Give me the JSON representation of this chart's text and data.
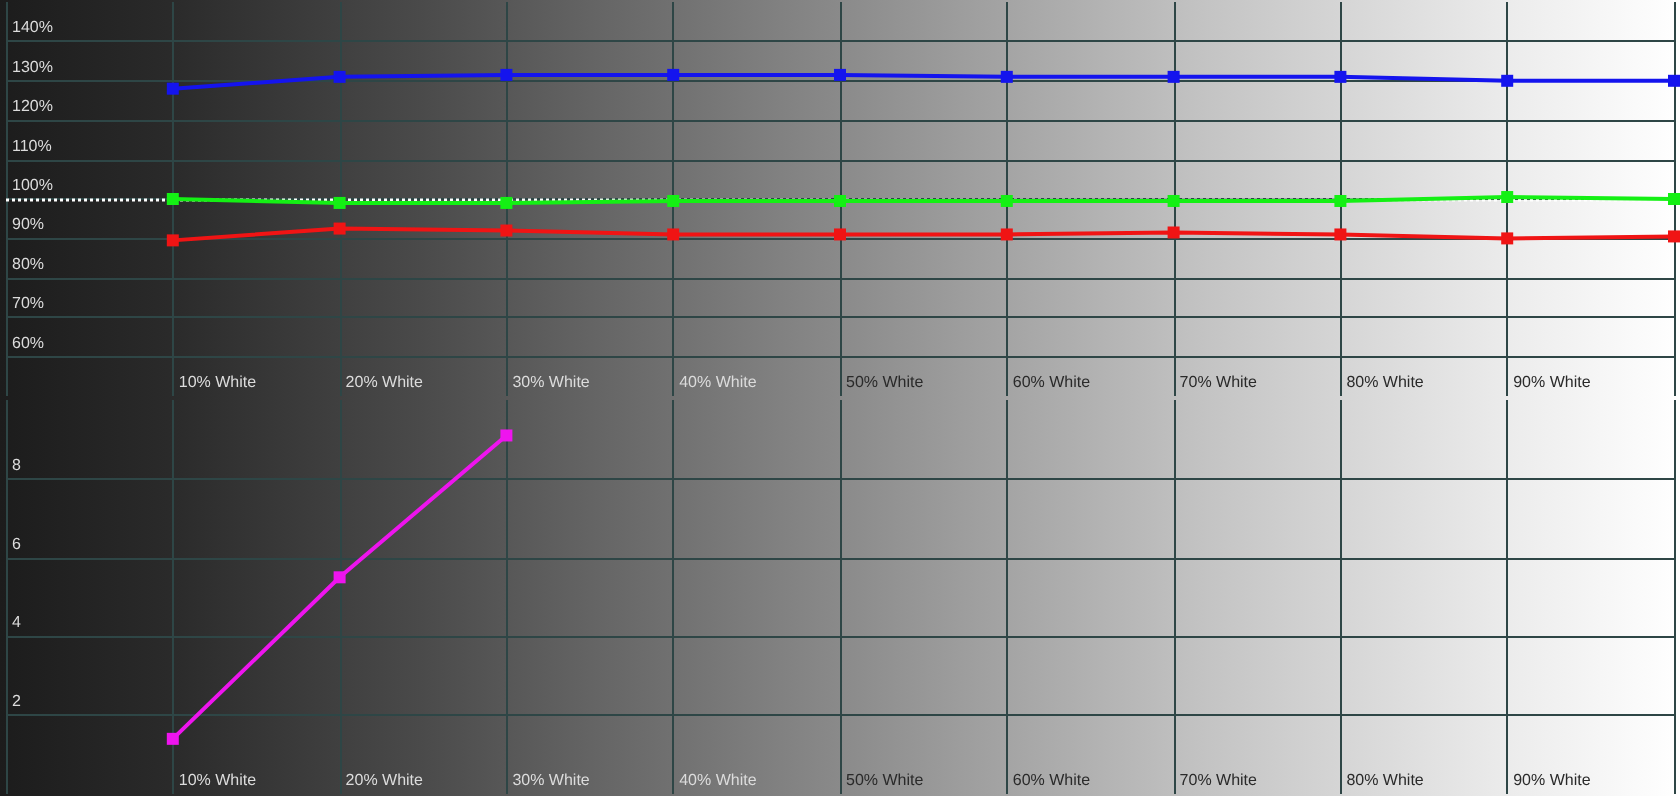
{
  "chart_data": [
    {
      "type": "line",
      "categories": [
        null,
        "10% White",
        "20% White",
        "30% White",
        "40% White",
        "50% White",
        "60% White",
        "70% White",
        "80% White",
        "90% White",
        null
      ],
      "series": [
        {
          "color": "#1414ee",
          "values": [
            null,
            128,
            131,
            131.5,
            131.5,
            131.5,
            131,
            131,
            131,
            130,
            130
          ]
        },
        {
          "color": "#14f014",
          "values": [
            null,
            100,
            99,
            99,
            99.5,
            99.5,
            99.5,
            99.5,
            99.5,
            100.5,
            100
          ]
        },
        {
          "color": "#f01414",
          "values": [
            null,
            89.5,
            92.5,
            92,
            91,
            91,
            91,
            91.5,
            91,
            90,
            90.5
          ]
        }
      ],
      "ylim": [
        50,
        150
      ],
      "yticks": [
        {
          "value": 60,
          "label": "60%"
        },
        {
          "value": 70,
          "label": "70%"
        },
        {
          "value": 80,
          "label": "80%"
        },
        {
          "value": 90,
          "label": "90%"
        },
        {
          "value": 100,
          "label": "100%"
        },
        {
          "value": 110,
          "label": "110%"
        },
        {
          "value": 120,
          "label": "120%"
        },
        {
          "value": 130,
          "label": "130%"
        },
        {
          "value": 140,
          "label": "140%"
        }
      ],
      "grid": true,
      "marker": "square",
      "line_style": "solid",
      "ref_lines": [
        {
          "axis": "y",
          "value": 100,
          "color": "#ffffff",
          "line_style": "dotted"
        }
      ]
    },
    {
      "type": "line",
      "categories": [
        null,
        "10% White",
        "20% White",
        "30% White",
        "40% White",
        "50% White",
        "60% White",
        "70% White",
        "80% White",
        "90% White",
        null
      ],
      "series": [
        {
          "color": "#ee14ee",
          "values": [
            null,
            1.4,
            5.5,
            9.1,
            null,
            null,
            null,
            null,
            null,
            null,
            null
          ]
        }
      ],
      "ylim": [
        0,
        10
      ],
      "yticks": [
        2,
        4,
        6,
        8
      ],
      "grid": true,
      "marker": "square",
      "line_style": "solid"
    }
  ]
}
